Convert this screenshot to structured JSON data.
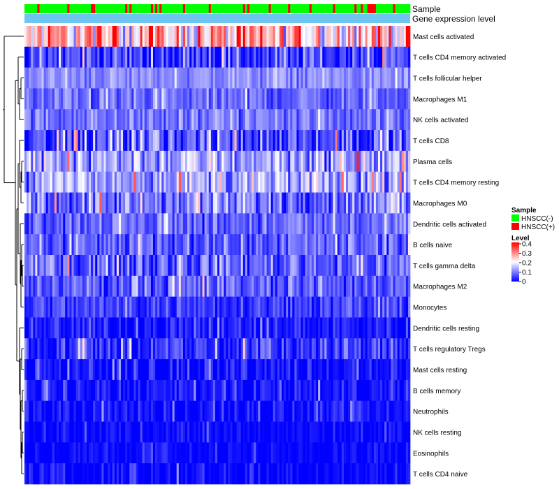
{
  "chart_data": {
    "type": "heatmap",
    "title": "",
    "annotation_tracks": [
      "Sample",
      "Gene expression level"
    ],
    "sample_legend": {
      "title": "Sample",
      "entries": [
        {
          "label": "HNSCC(-)",
          "color": "#00ff00"
        },
        {
          "label": "HNSCC(+)",
          "color": "#ff0000"
        }
      ]
    },
    "gene_expression_color": "#6ec6f0",
    "level_legend": {
      "title": "Level",
      "ticks": [
        "0",
        "0.1",
        "0.2",
        "0.3",
        "0.4"
      ],
      "range": [
        0,
        0.4
      ],
      "colors": {
        "low": "#0000ff",
        "mid": "#ffffff",
        "high": "#ff0000"
      }
    },
    "rows": [
      {
        "label": "Mast cells activated",
        "mean": 0.25,
        "spread": 0.13
      },
      {
        "label": "T cells CD4 memory activated",
        "mean": 0.05,
        "spread": 0.09
      },
      {
        "label": "T cells follicular helper",
        "mean": 0.11,
        "spread": 0.04
      },
      {
        "label": "Macrophages M1",
        "mean": 0.08,
        "spread": 0.05
      },
      {
        "label": "NK cells activated",
        "mean": 0.09,
        "spread": 0.05
      },
      {
        "label": "T cells CD8",
        "mean": 0.06,
        "spread": 0.1
      },
      {
        "label": "Plasma cells",
        "mean": 0.13,
        "spread": 0.09
      },
      {
        "label": "T cells CD4 memory resting",
        "mean": 0.13,
        "spread": 0.08
      },
      {
        "label": "Macrophages M0",
        "mean": 0.09,
        "spread": 0.08
      },
      {
        "label": "Dendritic cells activated",
        "mean": 0.08,
        "spread": 0.06
      },
      {
        "label": "B cells naive",
        "mean": 0.07,
        "spread": 0.06
      },
      {
        "label": "T cells gamma delta",
        "mean": 0.08,
        "spread": 0.07
      },
      {
        "label": "Macrophages M2",
        "mean": 0.07,
        "spread": 0.06
      },
      {
        "label": "Monocytes",
        "mean": 0.05,
        "spread": 0.05
      },
      {
        "label": "Dendritic cells resting",
        "mean": 0.02,
        "spread": 0.05
      },
      {
        "label": "T cells regulatory  Tregs",
        "mean": 0.04,
        "spread": 0.07
      },
      {
        "label": "Mast cells resting",
        "mean": 0.005,
        "spread": 0.05
      },
      {
        "label": "B cells memory",
        "mean": 0.01,
        "spread": 0.05
      },
      {
        "label": "Neutrophils",
        "mean": 0.01,
        "spread": 0.04
      },
      {
        "label": "NK cells resting",
        "mean": 0.005,
        "spread": 0.03
      },
      {
        "label": "Eosinophils",
        "mean": 0.005,
        "spread": 0.03
      },
      {
        "label": "T cells CD4 naive",
        "mean": 0.005,
        "spread": 0.04
      }
    ],
    "n_samples": 180,
    "sample_positive_fraction": 0.18
  }
}
